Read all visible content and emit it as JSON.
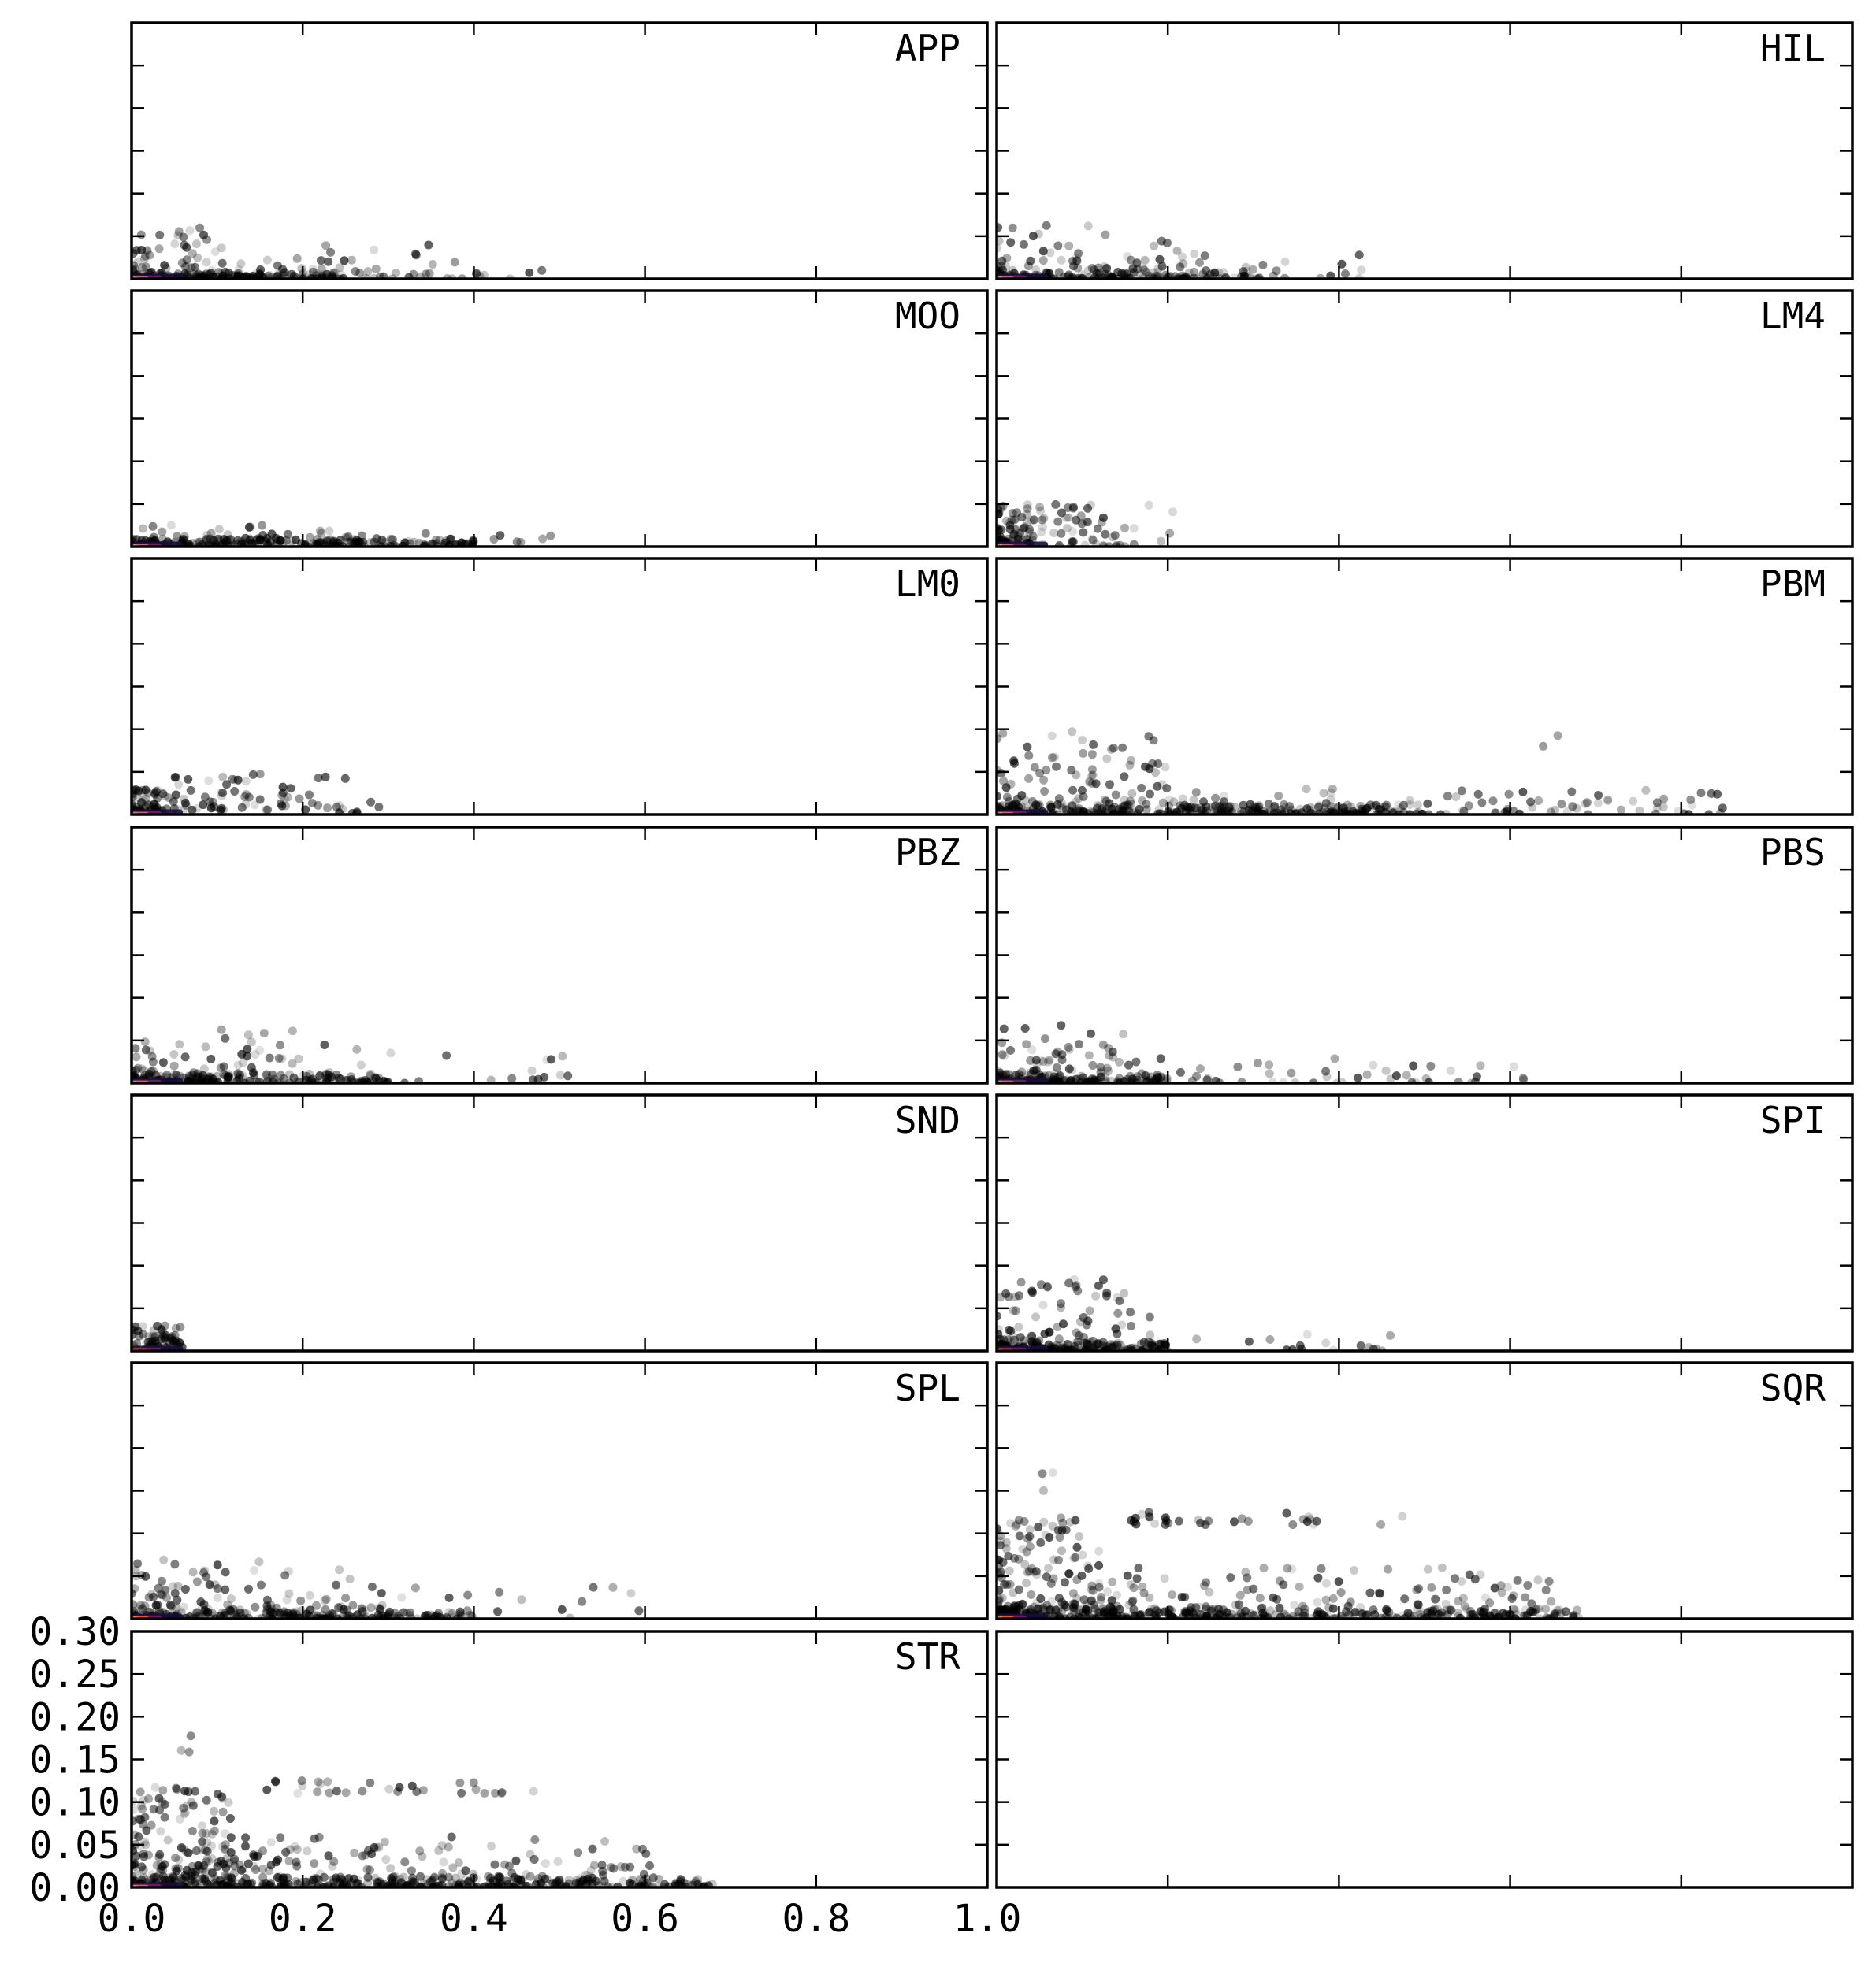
{
  "chart_data": {
    "type": "scatter",
    "layout": "small multiples, 7 rows x 2 columns, shared axes",
    "x_axis": {
      "range": [
        0.0,
        1.0
      ],
      "ticks": [
        0.0,
        0.2,
        0.4,
        0.6,
        0.8,
        1.0
      ],
      "tick_labels": [
        "0.0",
        "0.2",
        "0.4",
        "0.6",
        "0.8",
        "1.0"
      ]
    },
    "y_axis": {
      "range": [
        0.0,
        0.3
      ],
      "ticks": [
        0.0,
        0.05,
        0.1,
        0.15,
        0.2,
        0.25,
        0.3
      ],
      "tick_labels": [
        "0.00",
        "0.05",
        "0.10",
        "0.15",
        "0.20",
        "0.25",
        "0.30"
      ]
    },
    "grid": false,
    "point_color": "#000000",
    "density_colors": [
      "#1b0c41",
      "#781c6d",
      "#ed6925",
      "#fcffa4"
    ],
    "panels": [
      {
        "label": "APP",
        "clusters": [
          {
            "x": [
              0.0,
              0.25
            ],
            "y": [
              0.0,
              0.008
            ],
            "n": 160
          },
          {
            "x": [
              0.0,
              0.1
            ],
            "y": [
              0.01,
              0.06
            ],
            "n": 40
          },
          {
            "x": [
              0.1,
              0.4
            ],
            "y": [
              0.0,
              0.04
            ],
            "n": 45
          },
          {
            "x": [
              0.25,
              0.48
            ],
            "y": [
              0.0,
              0.012
            ],
            "n": 18
          }
        ]
      },
      {
        "label": "HIL",
        "clusters": [
          {
            "x": [
              0.0,
              0.3
            ],
            "y": [
              0.0,
              0.008
            ],
            "n": 160
          },
          {
            "x": [
              0.0,
              0.22
            ],
            "y": [
              0.01,
              0.065
            ],
            "n": 60
          },
          {
            "x": [
              0.2,
              0.45
            ],
            "y": [
              0.0,
              0.03
            ],
            "n": 30
          }
        ]
      },
      {
        "label": "MOO",
        "clusters": [
          {
            "x": [
              0.0,
              0.4
            ],
            "y": [
              0.0,
              0.01
            ],
            "n": 200
          },
          {
            "x": [
              0.0,
              0.35
            ],
            "y": [
              0.005,
              0.025
            ],
            "n": 60
          },
          {
            "x": [
              0.35,
              0.5
            ],
            "y": [
              0.0,
              0.015
            ],
            "n": 10
          }
        ]
      },
      {
        "label": "LM4",
        "clusters": [
          {
            "x": [
              0.0,
              0.04
            ],
            "y": [
              0.0,
              0.05
            ],
            "n": 80
          },
          {
            "x": [
              0.04,
              0.14
            ],
            "y": [
              0.0,
              0.05
            ],
            "n": 50
          },
          {
            "x": [
              0.14,
              0.22
            ],
            "y": [
              0.0,
              0.05
            ],
            "n": 10
          }
        ]
      },
      {
        "label": "LM0",
        "clusters": [
          {
            "x": [
              0.0,
              0.04
            ],
            "y": [
              0.0,
              0.03
            ],
            "n": 70
          },
          {
            "x": [
              0.04,
              0.25
            ],
            "y": [
              0.005,
              0.05
            ],
            "n": 70
          },
          {
            "x": [
              0.22,
              0.3
            ],
            "y": [
              0.0,
              0.015
            ],
            "n": 8
          }
        ]
      },
      {
        "label": "PBM",
        "clusters": [
          {
            "x": [
              0.0,
              0.5
            ],
            "y": [
              0.0,
              0.012
            ],
            "n": 280
          },
          {
            "x": [
              0.0,
              0.2
            ],
            "y": [
              0.01,
              0.1
            ],
            "n": 90
          },
          {
            "x": [
              0.2,
              0.85
            ],
            "y": [
              0.0,
              0.03
            ],
            "n": 120
          },
          {
            "x": [
              0.6,
              0.8
            ],
            "y": [
              0.08,
              0.1
            ],
            "n": 2
          }
        ]
      },
      {
        "label": "PBZ",
        "clusters": [
          {
            "x": [
              0.0,
              0.3
            ],
            "y": [
              0.0,
              0.01
            ],
            "n": 180
          },
          {
            "x": [
              0.0,
              0.25
            ],
            "y": [
              0.01,
              0.065
            ],
            "n": 60
          },
          {
            "x": [
              0.25,
              0.55
            ],
            "y": [
              0.0,
              0.04
            ],
            "n": 18
          }
        ]
      },
      {
        "label": "PBS",
        "clusters": [
          {
            "x": [
              0.0,
              0.2
            ],
            "y": [
              0.0,
              0.01
            ],
            "n": 150
          },
          {
            "x": [
              0.0,
              0.15
            ],
            "y": [
              0.01,
              0.07
            ],
            "n": 55
          },
          {
            "x": [
              0.15,
              0.62
            ],
            "y": [
              0.0,
              0.03
            ],
            "n": 50
          }
        ]
      },
      {
        "label": "SND",
        "clusters": [
          {
            "x": [
              0.0,
              0.06
            ],
            "y": [
              0.0,
              0.03
            ],
            "n": 80
          }
        ]
      },
      {
        "label": "SPI",
        "clusters": [
          {
            "x": [
              0.0,
              0.2
            ],
            "y": [
              0.0,
              0.01
            ],
            "n": 170
          },
          {
            "x": [
              0.0,
              0.18
            ],
            "y": [
              0.01,
              0.085
            ],
            "n": 80
          },
          {
            "x": [
              0.18,
              0.48
            ],
            "y": [
              0.0,
              0.02
            ],
            "n": 18
          }
        ]
      },
      {
        "label": "SPL",
        "clusters": [
          {
            "x": [
              0.0,
              0.4
            ],
            "y": [
              0.0,
              0.01
            ],
            "n": 200
          },
          {
            "x": [
              0.0,
              0.28
            ],
            "y": [
              0.01,
              0.07
            ],
            "n": 90
          },
          {
            "x": [
              0.28,
              0.62
            ],
            "y": [
              0.0,
              0.04
            ],
            "n": 25
          }
        ]
      },
      {
        "label": "SQR",
        "clusters": [
          {
            "x": [
              0.0,
              0.68
            ],
            "y": [
              0.0,
              0.012
            ],
            "n": 320
          },
          {
            "x": [
              0.0,
              0.12
            ],
            "y": [
              0.01,
              0.12
            ],
            "n": 140
          },
          {
            "x": [
              0.12,
              0.65
            ],
            "y": [
              0.005,
              0.06
            ],
            "n": 150
          },
          {
            "x": [
              0.15,
              0.5
            ],
            "y": [
              0.11,
              0.125
            ],
            "n": 30
          },
          {
            "x": [
              0.05,
              0.08
            ],
            "y": [
              0.15,
              0.18
            ],
            "n": 3
          }
        ]
      },
      {
        "label": "STR",
        "clusters": [
          {
            "x": [
              0.0,
              0.68
            ],
            "y": [
              0.0,
              0.012
            ],
            "n": 360
          },
          {
            "x": [
              0.0,
              0.12
            ],
            "y": [
              0.01,
              0.12
            ],
            "n": 150
          },
          {
            "x": [
              0.12,
              0.62
            ],
            "y": [
              0.005,
              0.06
            ],
            "n": 150
          },
          {
            "x": [
              0.15,
              0.5
            ],
            "y": [
              0.11,
              0.125
            ],
            "n": 30
          },
          {
            "x": [
              0.05,
              0.08
            ],
            "y": [
              0.15,
              0.18
            ],
            "n": 3
          }
        ]
      },
      {
        "label": "",
        "clusters": []
      }
    ]
  }
}
